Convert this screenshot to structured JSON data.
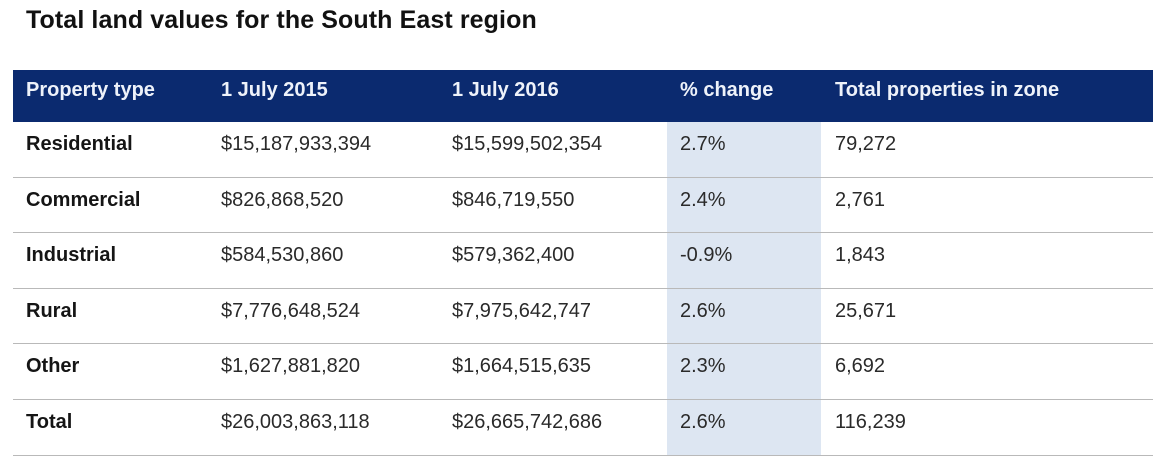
{
  "title": "Total land values for the South East region",
  "colors": {
    "header_bg": "#0b2a6f",
    "header_text": "#eef2fa",
    "highlight_column_bg": "#dde6f2",
    "row_divider": "#b9b9b9"
  },
  "table": {
    "columns": [
      "Property type",
      "1 July 2015",
      "1 July 2016",
      "% change",
      "Total properties in zone"
    ],
    "rows": [
      [
        "Residential",
        "$15,187,933,394",
        "$15,599,502,354",
        "2.7%",
        "79,272"
      ],
      [
        "Commercial",
        "$826,868,520",
        "$846,719,550",
        "2.4%",
        "2,761"
      ],
      [
        "Industrial",
        "$584,530,860",
        "$579,362,400",
        "-0.9%",
        "1,843"
      ],
      [
        "Rural",
        "$7,776,648,524",
        "$7,975,642,747",
        "2.6%",
        "25,671"
      ],
      [
        "Other",
        "$1,627,881,820",
        "$1,664,515,635",
        "2.3%",
        "6,692"
      ],
      [
        "Total",
        "$26,003,863,118",
        "$26,665,742,686",
        "2.6%",
        "116,239"
      ]
    ]
  }
}
